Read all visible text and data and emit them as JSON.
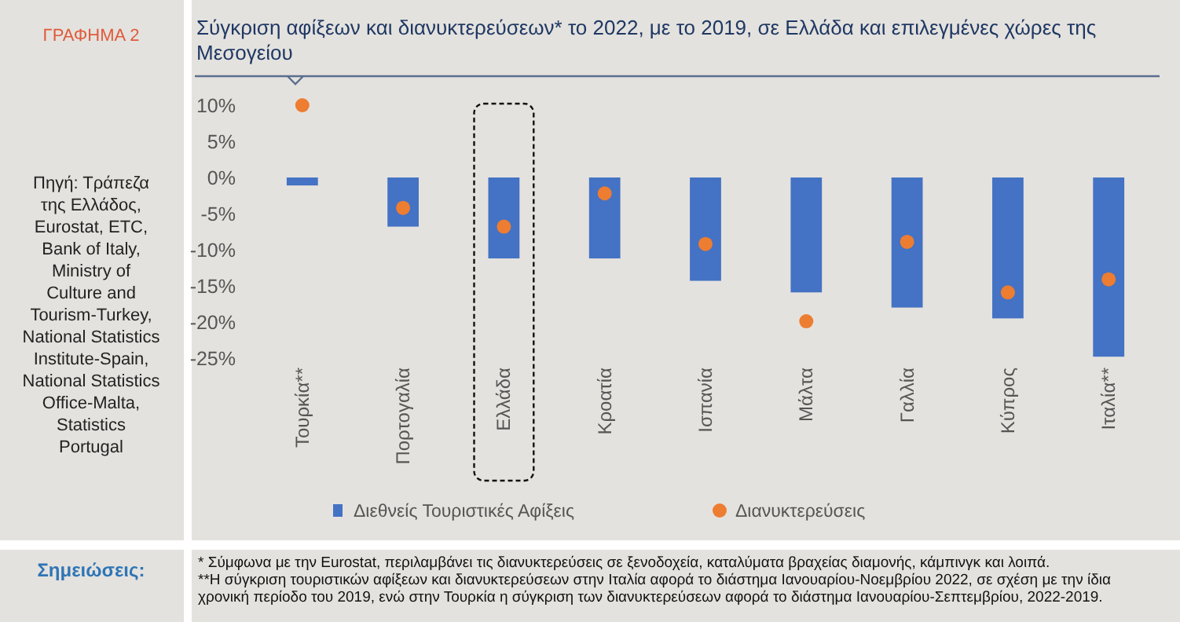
{
  "chart_data": {
    "type": "bar",
    "title": "Σύγκριση αφίξεων και διανυκτερεύσεων* το 2022, με το 2019, σε Ελλάδα και επιλεγμένες χώρες της Μεσογείου",
    "categories": [
      "Τουρκία**",
      "Πορτογαλία",
      "Ελλάδα",
      "Κροατία",
      "Ισπανία",
      "Μάλτα",
      "Γαλλία",
      "Κύπρος",
      "Ιταλία**"
    ],
    "series": [
      {
        "name": "Διεθνείς Τουριστικές Αφίξεις",
        "color": "#4472c4",
        "values": [
          -1.1,
          -6.8,
          -11.2,
          -11.2,
          -14.3,
          -15.9,
          -18.0,
          -19.5,
          -24.8
        ]
      },
      {
        "name": "Διανυκτερεύσεις",
        "type": "scatter",
        "color": "#ed7d31",
        "values": [
          10,
          -4.2,
          -6.8,
          -2.2,
          -9.2,
          -19.9,
          -8.9,
          -15.9,
          -14.1
        ]
      }
    ],
    "ylim": [
      -25,
      10
    ],
    "yticks": [
      {
        "value": 10,
        "label": "10%"
      },
      {
        "value": 5,
        "label": "5%"
      },
      {
        "value": 0,
        "label": "0%"
      },
      {
        "value": -5,
        "label": "-5%"
      },
      {
        "value": -10,
        "label": "-10%"
      },
      {
        "value": -15,
        "label": "-15%"
      },
      {
        "value": -20,
        "label": "-20%"
      },
      {
        "value": -25,
        "label": "-25%"
      }
    ],
    "grid": false,
    "legend": "bottom",
    "marker": "circle",
    "annotations": [
      "ΓΡΑΦΗΜΑ 2",
      "Πηγή: Τράπεζα της Ελλάδος, Eurostat, ETC, Bank of Italy, Ministry of Culture and Tourism-Turkey, National Statistics Institute-Spain, National Statistics Office-Malta, Statistics Portugal",
      "Σημειώσεις:",
      "* Σύμφωνα με την Eurostat, περιλαμβάνει τις διανυκτερεύσεις σε ξενοδοχεία, καταλύματα βραχείας διαμονής, κάμπινγκ και λοιπά.",
      "**Η σύγκριση τουριστικών αφίξεων και διανυκτερεύσεων στην Ιταλία αφορά το διάστημα Ιανουαρίου-Νοεμβρίου 2022, σε σχέση με την ίδια χρονική περίοδο του 2019, ενώ στην Τουρκία η σύγκριση των διανυκτερεύσεων αφορά το διάστημα Ιανουαρίου-Σεπτεμβρίου, 2022-2019."
    ]
  }
}
